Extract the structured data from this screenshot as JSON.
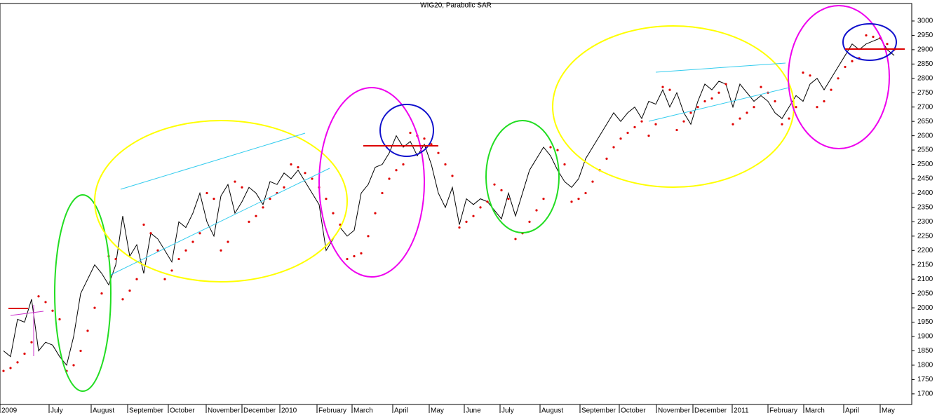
{
  "chart_data": {
    "type": "line",
    "title": "WIG20, Parabolic SAR",
    "x": [
      0,
      1,
      2,
      3,
      4,
      5,
      6,
      7,
      8,
      9,
      10,
      11,
      12,
      13,
      14,
      15,
      16,
      17,
      18,
      19,
      20,
      21,
      22,
      23,
      24,
      25,
      26,
      27,
      28,
      29,
      30,
      31,
      32,
      33,
      34,
      35,
      36,
      37,
      38,
      39,
      40,
      41,
      42,
      43,
      44,
      45,
      46,
      47,
      48,
      49,
      50,
      51,
      52,
      53,
      54,
      55,
      56,
      57,
      58,
      59,
      60,
      61,
      62,
      63,
      64,
      65,
      66,
      67,
      68,
      69,
      70,
      71,
      72,
      73,
      74,
      75,
      76,
      77,
      78,
      79,
      80,
      81,
      82,
      83,
      84,
      85,
      86,
      87,
      88,
      89,
      90,
      91,
      92,
      93,
      94,
      95,
      96,
      97,
      98,
      99,
      100,
      101,
      102,
      103,
      104,
      105,
      106,
      107,
      108,
      109,
      110,
      111,
      112,
      113,
      114,
      115,
      116,
      117,
      118,
      119,
      120,
      121,
      122,
      123,
      124,
      125,
      126,
      127
    ],
    "series": [
      {
        "name": "WIG20",
        "color": "#000000",
        "style": "line",
        "values": [
          1850,
          1830,
          1960,
          1950,
          2030,
          1850,
          1880,
          1870,
          1830,
          1800,
          1900,
          2050,
          2100,
          2150,
          2120,
          2080,
          2150,
          2320,
          2180,
          2220,
          2120,
          2260,
          2240,
          2200,
          2160,
          2300,
          2280,
          2330,
          2400,
          2300,
          2250,
          2390,
          2430,
          2330,
          2370,
          2420,
          2400,
          2360,
          2440,
          2430,
          2470,
          2450,
          2480,
          2440,
          2400,
          2360,
          2200,
          2240,
          2280,
          2250,
          2270,
          2400,
          2430,
          2490,
          2500,
          2540,
          2600,
          2560,
          2580,
          2530,
          2570,
          2500,
          2400,
          2350,
          2420,
          2290,
          2380,
          2360,
          2380,
          2370,
          2340,
          2310,
          2400,
          2320,
          2400,
          2480,
          2520,
          2560,
          2530,
          2480,
          2440,
          2420,
          2450,
          2520,
          2560,
          2600,
          2640,
          2680,
          2650,
          2680,
          2700,
          2660,
          2720,
          2710,
          2760,
          2700,
          2750,
          2680,
          2640,
          2720,
          2780,
          2760,
          2790,
          2780,
          2700,
          2780,
          2750,
          2720,
          2740,
          2720,
          2680,
          2660,
          2700,
          2740,
          2720,
          2780,
          2800,
          2760,
          2800,
          2840,
          2880,
          2920,
          2900,
          2920,
          2930,
          2940,
          2900,
          2880
        ]
      },
      {
        "name": "Parabolic SAR",
        "color": "#e00000",
        "style": "dots",
        "values": [
          1780,
          1790,
          1810,
          1840,
          1880,
          2040,
          2020,
          1990,
          1960,
          1780,
          1800,
          1850,
          1920,
          2000,
          2050,
          2180,
          2170,
          2030,
          2060,
          2100,
          2290,
          2260,
          2200,
          2100,
          2130,
          2170,
          2200,
          2230,
          2260,
          2400,
          2380,
          2200,
          2230,
          2440,
          2420,
          2300,
          2320,
          2350,
          2380,
          2400,
          2420,
          2500,
          2490,
          2470,
          2450,
          2420,
          2380,
          2330,
          2290,
          2170,
          2180,
          2190,
          2250,
          2330,
          2400,
          2450,
          2480,
          2500,
          2610,
          2600,
          2590,
          2570,
          2540,
          2500,
          2460,
          2280,
          2300,
          2320,
          2350,
          2370,
          2430,
          2410,
          2380,
          2240,
          2260,
          2300,
          2340,
          2380,
          2560,
          2550,
          2500,
          2370,
          2380,
          2400,
          2440,
          2480,
          2520,
          2560,
          2590,
          2610,
          2630,
          2650,
          2600,
          2640,
          2770,
          2760,
          2620,
          2650,
          2680,
          2700,
          2720,
          2730,
          2750,
          2780,
          2640,
          2660,
          2680,
          2700,
          2770,
          2750,
          2720,
          2640,
          2660,
          2700,
          2820,
          2810,
          2700,
          2720,
          2760,
          2800,
          2840,
          2860,
          2870,
          2950,
          2945,
          2940,
          2920,
          2900
        ]
      }
    ],
    "xlim": [
      -0.5,
      129.5
    ],
    "xticks": [
      {
        "value": -0.5,
        "label": "2009"
      },
      {
        "value": 6.5,
        "label": "July"
      },
      {
        "value": 12.5,
        "label": "August"
      },
      {
        "value": 17.7,
        "label": "September"
      },
      {
        "value": 23.5,
        "label": "October"
      },
      {
        "value": 28.9,
        "label": "November"
      },
      {
        "value": 34,
        "label": "December"
      },
      {
        "value": 39.4,
        "label": "2010"
      },
      {
        "value": 44.7,
        "label": "February"
      },
      {
        "value": 49.7,
        "label": "March"
      },
      {
        "value": 55.5,
        "label": "April"
      },
      {
        "value": 60.7,
        "label": "May"
      },
      {
        "value": 65.7,
        "label": "June"
      },
      {
        "value": 70.8,
        "label": "July"
      },
      {
        "value": 76.5,
        "label": "August"
      },
      {
        "value": 82.2,
        "label": "September"
      },
      {
        "value": 87.8,
        "label": "October"
      },
      {
        "value": 93.1,
        "label": "November"
      },
      {
        "value": 98.3,
        "label": "December"
      },
      {
        "value": 103.9,
        "label": "2011"
      },
      {
        "value": 109,
        "label": "February"
      },
      {
        "value": 114.1,
        "label": "March"
      },
      {
        "value": 119.8,
        "label": "April"
      },
      {
        "value": 125,
        "label": "May"
      }
    ],
    "ylim": [
      1663,
      3061
    ],
    "yticks": [
      1700,
      1750,
      1800,
      1850,
      1900,
      1950,
      2000,
      2050,
      2100,
      2150,
      2200,
      2250,
      2300,
      2350,
      2400,
      2450,
      2500,
      2550,
      2600,
      2650,
      2700,
      2750,
      2800,
      2850,
      2900,
      2950,
      3000
    ],
    "grid": false
  }
}
